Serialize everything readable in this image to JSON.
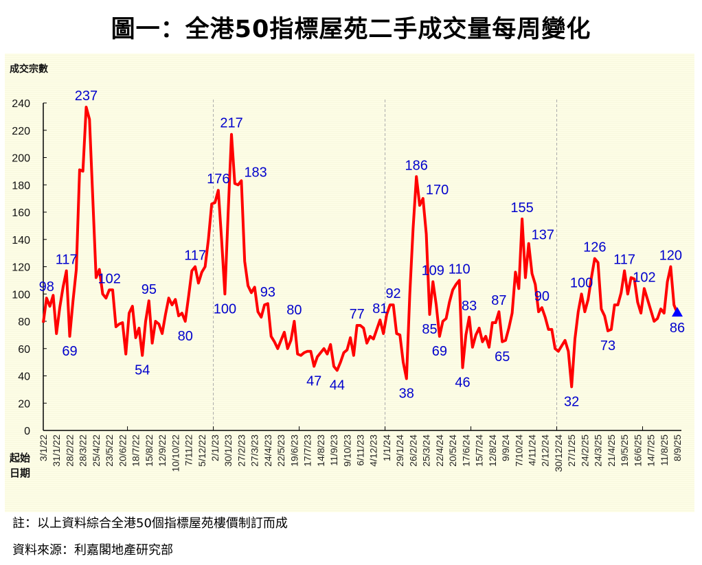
{
  "title": "圖一：全港50指標屋苑二手成交量每周變化",
  "notes": [
    "註：以上資料綜合全港50個指標屋苑樓價制訂而成",
    "資料來源：利嘉閣地產研究部"
  ],
  "colors": {
    "line": "#ff0000",
    "labels": "#0000cc",
    "background": "#fdfde6",
    "marker": "#0000ff"
  },
  "chart_data": {
    "type": "line",
    "title": "圖一：全港50指標屋苑二手成交量每周變化",
    "ylabel": "成交宗數",
    "xlabel_lines": [
      "起始",
      "日期"
    ],
    "ylim": [
      0,
      240
    ],
    "yticks": [
      0,
      20,
      40,
      60,
      80,
      100,
      120,
      140,
      160,
      180,
      200,
      220,
      240
    ],
    "x_tick_every_weeks": 4,
    "x_tick_labels": [
      "3/1/22",
      "31/1/22",
      "28/2/22",
      "28/3/22",
      "25/4/22",
      "23/5/22",
      "20/6/22",
      "18/7/22",
      "15/8/22",
      "12/9/22",
      "10/10/22",
      "7/11/22",
      "5/12/22",
      "2/1/23",
      "30/1/23",
      "27/2/23",
      "27/3/23",
      "24/4/23",
      "22/5/23",
      "19/6/23",
      "17/7/23",
      "14/8/23",
      "11/9/23",
      "9/10/23",
      "6/11/23",
      "4/12/23",
      "1/1/24",
      "29/1/24",
      "26/2/24",
      "25/3/24",
      "22/4/24",
      "20/5/24",
      "17/6/24",
      "15/7/24",
      "12/8/24",
      "9/9/24",
      "7/10/24",
      "4/11/24",
      "2/12/24",
      "30/12/24",
      "27/1/25",
      "24/2/25",
      "24/3/25",
      "21/4/25",
      "19/5/25",
      "16/6/25",
      "14/7/25",
      "11/8/25",
      "8/9/25"
    ],
    "year_separators_after_week": [
      51,
      103,
      155
    ],
    "grid": false,
    "series": [
      {
        "name": "成交宗數",
        "values": [
          79,
          97,
          91,
          99,
          71,
          90,
          105,
          117,
          69,
          95,
          118,
          191,
          190,
          237,
          228,
          170,
          112,
          118,
          100,
          97,
          103,
          103,
          76,
          78,
          79,
          56,
          86,
          91,
          68,
          75,
          55,
          80,
          95,
          64,
          80,
          78,
          71,
          85,
          97,
          92,
          96,
          84,
          86,
          80,
          98,
          117,
          120,
          108,
          116,
          120,
          140,
          166,
          167,
          176,
          140,
          100,
          160,
          217,
          181,
          180,
          183,
          124,
          106,
          101,
          105,
          87,
          83,
          92,
          93,
          69,
          65,
          60,
          66,
          72,
          60,
          66,
          80,
          56,
          55,
          57,
          58,
          58,
          47,
          54,
          57,
          60,
          56,
          63,
          47,
          44,
          50,
          57,
          59,
          68,
          55,
          77,
          77,
          75,
          64,
          69,
          67,
          74,
          81,
          71,
          85,
          92,
          92,
          71,
          70,
          50,
          38,
          100,
          148,
          186,
          165,
          170,
          144,
          85,
          109,
          92,
          69,
          80,
          82,
          94,
          103,
          107,
          110,
          46,
          70,
          83,
          61,
          70,
          75,
          65,
          69,
          61,
          79,
          79,
          87,
          65,
          66,
          75,
          86,
          116,
          104,
          155,
          112,
          137,
          115,
          107,
          87,
          90,
          83,
          74,
          74,
          60,
          58,
          62,
          66,
          58,
          32,
          67,
          87,
          100,
          87,
          96,
          112,
          126,
          123,
          89,
          84,
          73,
          74,
          92,
          92,
          101,
          117,
          100,
          112,
          111,
          94,
          86,
          104,
          96,
          88,
          80,
          82,
          89,
          86,
          109,
          120,
          92,
          86
        ]
      }
    ],
    "data_labels": [
      {
        "index": 1,
        "value": "98",
        "pos": "above"
      },
      {
        "index": 7,
        "value": "117",
        "pos": "above"
      },
      {
        "index": 8,
        "value": "69",
        "pos": "below"
      },
      {
        "index": 13,
        "value": "237",
        "pos": "above"
      },
      {
        "index": 20,
        "value": "102",
        "pos": "above"
      },
      {
        "index": 30,
        "value": "54",
        "pos": "below"
      },
      {
        "index": 32,
        "value": "95",
        "pos": "above"
      },
      {
        "index": 43,
        "value": "80",
        "pos": "below"
      },
      {
        "index": 46,
        "value": "117",
        "pos": "above"
      },
      {
        "index": 53,
        "value": "176",
        "pos": "above"
      },
      {
        "index": 55,
        "value": "100",
        "pos": "below"
      },
      {
        "index": 57,
        "value": "217",
        "pos": "above"
      },
      {
        "index": 60,
        "value": "183",
        "pos": "above-right"
      },
      {
        "index": 68,
        "value": "93",
        "pos": "above"
      },
      {
        "index": 76,
        "value": "80",
        "pos": "above"
      },
      {
        "index": 82,
        "value": "47",
        "pos": "below"
      },
      {
        "index": 89,
        "value": "44",
        "pos": "below"
      },
      {
        "index": 95,
        "value": "77",
        "pos": "above"
      },
      {
        "index": 102,
        "value": "81",
        "pos": "above"
      },
      {
        "index": 106,
        "value": "92",
        "pos": "above"
      },
      {
        "index": 110,
        "value": "38",
        "pos": "below"
      },
      {
        "index": 113,
        "value": "186",
        "pos": "above"
      },
      {
        "index": 115,
        "value": "170",
        "pos": "above-right"
      },
      {
        "index": 117,
        "value": "85",
        "pos": "below"
      },
      {
        "index": 118,
        "value": "109",
        "pos": "above"
      },
      {
        "index": 120,
        "value": "69",
        "pos": "below"
      },
      {
        "index": 126,
        "value": "110",
        "pos": "above"
      },
      {
        "index": 127,
        "value": "46",
        "pos": "below"
      },
      {
        "index": 129,
        "value": "83",
        "pos": "above"
      },
      {
        "index": 138,
        "value": "87",
        "pos": "above"
      },
      {
        "index": 139,
        "value": "65",
        "pos": "below"
      },
      {
        "index": 145,
        "value": "155",
        "pos": "above"
      },
      {
        "index": 147,
        "value": "137",
        "pos": "above-right"
      },
      {
        "index": 151,
        "value": "90",
        "pos": "above"
      },
      {
        "index": 160,
        "value": "32",
        "pos": "below"
      },
      {
        "index": 163,
        "value": "100",
        "pos": "above"
      },
      {
        "index": 167,
        "value": "126",
        "pos": "above"
      },
      {
        "index": 171,
        "value": "73",
        "pos": "below"
      },
      {
        "index": 176,
        "value": "117",
        "pos": "above"
      },
      {
        "index": 182,
        "value": "102",
        "pos": "above"
      },
      {
        "index": 190,
        "value": "120",
        "pos": "above"
      },
      {
        "index": 192,
        "value": "86",
        "pos": "below"
      }
    ],
    "latest_marker": "triangle"
  }
}
